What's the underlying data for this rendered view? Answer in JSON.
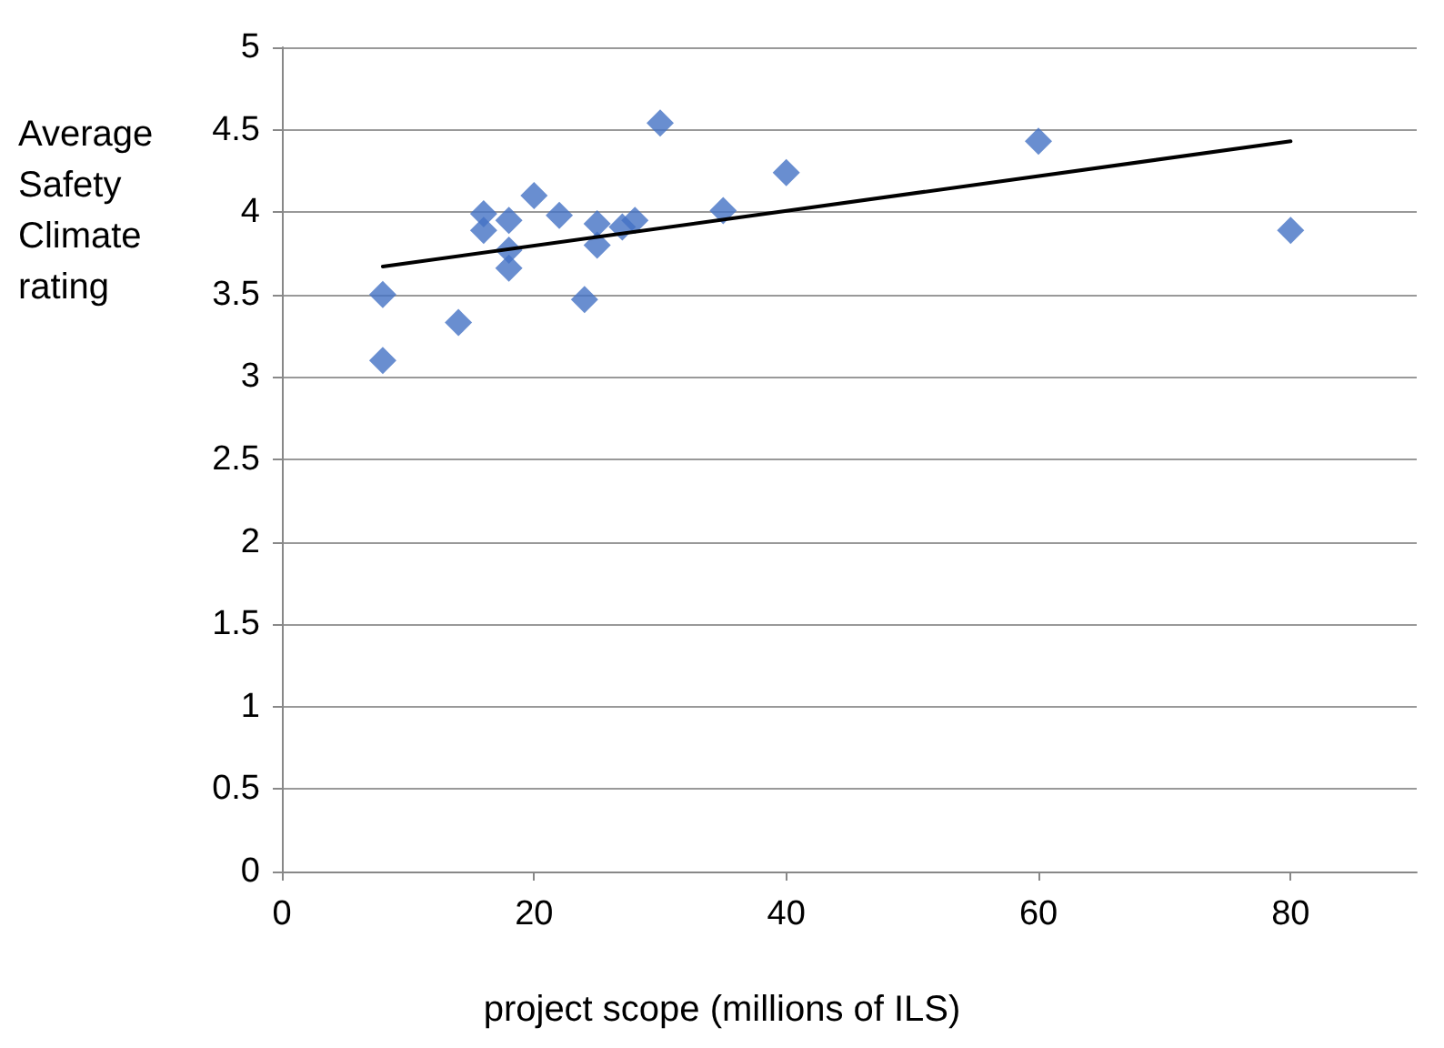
{
  "chart_data": {
    "type": "scatter",
    "xlabel": "project scope (millions of ILS)",
    "ylabel": "Average Safety Climate rating",
    "xlim": [
      0,
      90
    ],
    "xticks": [
      0,
      20,
      40,
      60,
      80
    ],
    "ylim": [
      0,
      5
    ],
    "yticks": [
      0,
      0.5,
      1,
      1.5,
      2,
      2.5,
      3,
      3.5,
      4,
      4.5,
      5
    ],
    "grid": "y",
    "marker": "diamond",
    "series": [
      {
        "color": "#4472c4",
        "x": [
          8,
          8,
          14,
          16,
          16,
          18,
          18,
          18,
          20,
          22,
          24,
          25,
          25,
          27,
          28,
          30,
          35,
          40,
          60,
          80
        ],
        "values": [
          3.1,
          3.5,
          3.33,
          3.99,
          3.89,
          3.95,
          3.77,
          3.66,
          4.1,
          3.98,
          3.47,
          3.93,
          3.8,
          3.91,
          3.95,
          4.54,
          4.01,
          4.24,
          4.43,
          3.89
        ]
      },
      {
        "type": "line",
        "color": "#000000",
        "marker": "none",
        "x": [
          8,
          80
        ],
        "values": [
          3.67,
          4.43
        ]
      }
    ]
  }
}
